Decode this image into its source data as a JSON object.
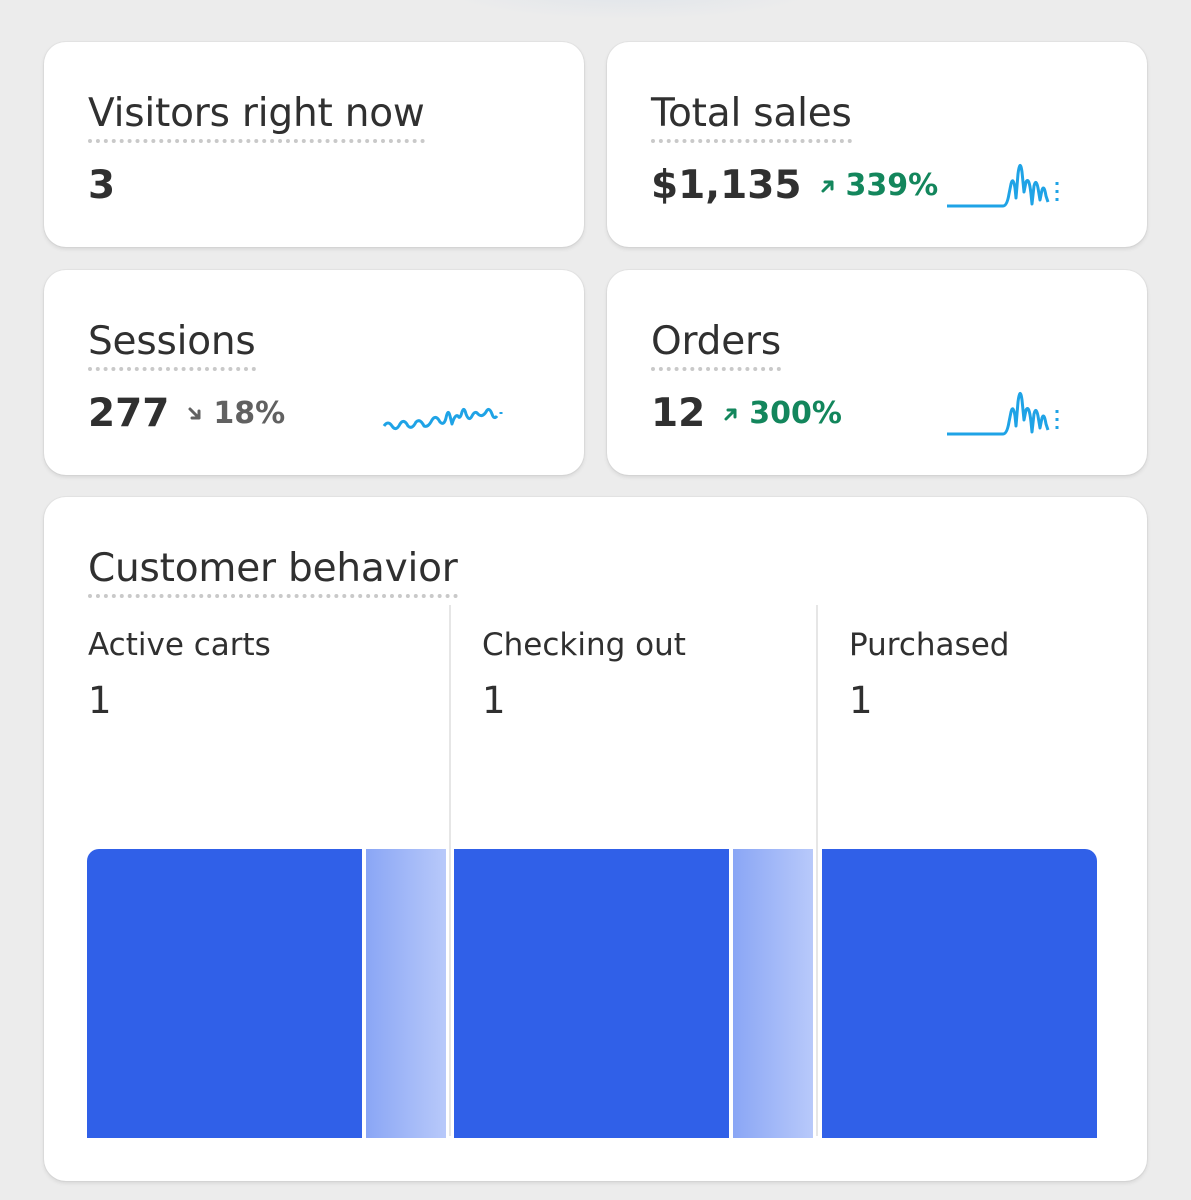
{
  "visitors": {
    "title": "Visitors right now",
    "value": "3"
  },
  "total_sales": {
    "title": "Total sales",
    "value": "$1,135",
    "change": "339%",
    "direction": "up"
  },
  "sessions": {
    "title": "Sessions",
    "value": "277",
    "change": "18%",
    "direction": "down"
  },
  "orders": {
    "title": "Orders",
    "value": "12",
    "change": "300%",
    "direction": "up"
  },
  "customer_behavior": {
    "title": "Customer behavior",
    "stages": [
      {
        "label": "Active carts",
        "value": "1"
      },
      {
        "label": "Checking out",
        "value": "1"
      },
      {
        "label": "Purchased",
        "value": "1"
      }
    ]
  },
  "colors": {
    "accent_blue": "#3060e8",
    "sparkline": "#1fa3e6",
    "positive": "#13865c",
    "neutral": "#616161"
  },
  "icons": {
    "up": "arrow-up-right-icon",
    "down": "arrow-down-right-icon"
  }
}
